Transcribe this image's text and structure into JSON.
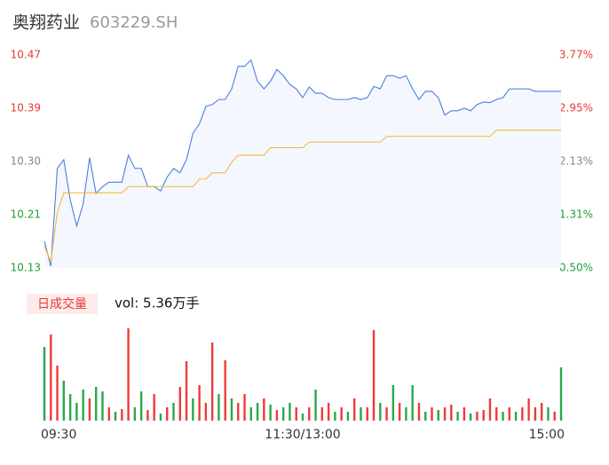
{
  "header": {
    "title": "奥翔药业",
    "code": "603229.SH"
  },
  "chart_data": [
    {
      "type": "line",
      "x": [
        0,
        3,
        6,
        9,
        12,
        15,
        18,
        21,
        24,
        27,
        30,
        33,
        36,
        39,
        42,
        45,
        48,
        51,
        54,
        57,
        60,
        63,
        66,
        69,
        72,
        75,
        78,
        81,
        84,
        87,
        90,
        93,
        96,
        99,
        102,
        105,
        108,
        111,
        114,
        117,
        120,
        123,
        126,
        129,
        132,
        135,
        138,
        141,
        144,
        147,
        150,
        153,
        156,
        159,
        162,
        165,
        168,
        171,
        174,
        177,
        180,
        183,
        186,
        189,
        192,
        195,
        198,
        201,
        204,
        207,
        210,
        213,
        216,
        219,
        222,
        225,
        228,
        231,
        234,
        237,
        240
      ],
      "series": [
        {
          "color": "#4a7fe0",
          "values": [
            10.173,
            10.133,
            10.289,
            10.303,
            10.239,
            10.197,
            10.232,
            10.306,
            10.249,
            10.26,
            10.267,
            10.267,
            10.267,
            10.31,
            10.289,
            10.289,
            10.26,
            10.26,
            10.253,
            10.275,
            10.289,
            10.282,
            10.303,
            10.345,
            10.36,
            10.388,
            10.391,
            10.399,
            10.399,
            10.416,
            10.452,
            10.452,
            10.462,
            10.428,
            10.416,
            10.428,
            10.447,
            10.437,
            10.423,
            10.416,
            10.402,
            10.419,
            10.409,
            10.409,
            10.402,
            10.399,
            10.399,
            10.399,
            10.402,
            10.399,
            10.402,
            10.42,
            10.416,
            10.437,
            10.437,
            10.433,
            10.437,
            10.416,
            10.399,
            10.412,
            10.412,
            10.402,
            10.374,
            10.381,
            10.381,
            10.385,
            10.381,
            10.391,
            10.395,
            10.394,
            10.399,
            10.402,
            10.416,
            10.416,
            10.416,
            10.416,
            10.412,
            10.412,
            10.412,
            10.412,
            10.412
          ]
        },
        {
          "color": "#f5b83d",
          "values": [
            10.165,
            10.14,
            10.218,
            10.25,
            10.25,
            10.25,
            10.25,
            10.25,
            10.25,
            10.25,
            10.25,
            10.25,
            10.25,
            10.26,
            10.26,
            10.26,
            10.26,
            10.26,
            10.26,
            10.26,
            10.26,
            10.26,
            10.26,
            10.26,
            10.272,
            10.272,
            10.282,
            10.282,
            10.282,
            10.299,
            10.31,
            10.31,
            10.31,
            10.31,
            10.31,
            10.322,
            10.322,
            10.322,
            10.322,
            10.322,
            10.322,
            10.331,
            10.331,
            10.331,
            10.331,
            10.331,
            10.331,
            10.331,
            10.331,
            10.331,
            10.331,
            10.331,
            10.331,
            10.34,
            10.34,
            10.34,
            10.34,
            10.34,
            10.34,
            10.34,
            10.34,
            10.34,
            10.34,
            10.34,
            10.34,
            10.34,
            10.34,
            10.34,
            10.34,
            10.34,
            10.35,
            10.35,
            10.35,
            10.35,
            10.35,
            10.35,
            10.35,
            10.35,
            10.35,
            10.35,
            10.35
          ]
        }
      ],
      "fill_color": "#f4f7fd",
      "xlim": [
        0,
        240
      ],
      "ylim": [
        10.13,
        10.47
      ],
      "yticks": [
        {
          "value": 10.47,
          "label": "10.47"
        },
        {
          "value": 10.385,
          "label": "10.39"
        },
        {
          "value": 10.3,
          "label": "10.30"
        },
        {
          "value": 10.215,
          "label": "10.21"
        },
        {
          "value": 10.13,
          "label": "10.13"
        }
      ],
      "ytick_colors": [
        "#e53935",
        "#e53935",
        "#888888",
        "#1f9d3a",
        "#1f9d3a"
      ],
      "y2lim": [
        0.5,
        3.77
      ],
      "y2ticks": [
        {
          "value": 3.77,
          "label": "3.77%"
        },
        {
          "value": 2.9525,
          "label": "2.95%"
        },
        {
          "value": 2.135,
          "label": "2.13%"
        },
        {
          "value": 1.3175,
          "label": "1.31%"
        },
        {
          "value": 0.5,
          "label": "0.50%"
        }
      ],
      "y2tick_colors": [
        "#e53935",
        "#e53935",
        "#888888",
        "#1f9d3a",
        "#1f9d3a"
      ]
    },
    {
      "type": "bar",
      "badge": "日成交量",
      "label": "vol: 5.36万手",
      "x": [
        0,
        3,
        6,
        9,
        12,
        15,
        18,
        21,
        24,
        27,
        30,
        33,
        36,
        39,
        42,
        45,
        48,
        51,
        54,
        57,
        60,
        63,
        66,
        69,
        72,
        75,
        78,
        81,
        84,
        87,
        90,
        93,
        96,
        99,
        102,
        105,
        108,
        111,
        114,
        117,
        120,
        123,
        126,
        129,
        132,
        135,
        138,
        141,
        144,
        147,
        150,
        153,
        156,
        159,
        162,
        165,
        168,
        171,
        174,
        177,
        180,
        183,
        186,
        189,
        192,
        195,
        198,
        201,
        204,
        207,
        210,
        213,
        216,
        219,
        222,
        225,
        228,
        231,
        234,
        237,
        240
      ],
      "values": [
        830,
        970,
        620,
        450,
        300,
        200,
        350,
        250,
        380,
        330,
        150,
        100,
        130,
        1040,
        150,
        330,
        120,
        300,
        80,
        150,
        200,
        380,
        670,
        250,
        400,
        200,
        880,
        300,
        680,
        250,
        200,
        300,
        150,
        200,
        250,
        180,
        120,
        150,
        200,
        150,
        80,
        150,
        350,
        150,
        200,
        100,
        150,
        100,
        250,
        150,
        150,
        1020,
        200,
        150,
        400,
        200,
        150,
        400,
        200,
        100,
        150,
        120,
        150,
        180,
        100,
        150,
        80,
        100,
        120,
        250,
        150,
        100,
        150,
        100,
        150,
        250,
        150,
        200,
        150,
        100,
        600
      ],
      "up": [
        false,
        true,
        true,
        false,
        false,
        false,
        false,
        true,
        false,
        false,
        true,
        false,
        true,
        true,
        false,
        false,
        true,
        true,
        false,
        true,
        false,
        true,
        true,
        false,
        true,
        true,
        true,
        false,
        true,
        false,
        true,
        true,
        false,
        false,
        true,
        false,
        true,
        false,
        false,
        true,
        false,
        true,
        false,
        true,
        true,
        false,
        true,
        false,
        true,
        false,
        true,
        true,
        false,
        true,
        false,
        true,
        false,
        false,
        true,
        false,
        true,
        false,
        true,
        true,
        false,
        true,
        false,
        true,
        true,
        true,
        true,
        false,
        true,
        false,
        true,
        true,
        true,
        true,
        false,
        true,
        false
      ],
      "up_color": "#ef3b3b",
      "down_color": "#2aa84a",
      "xlim": [
        0,
        240
      ],
      "ylim": [
        0,
        1100
      ],
      "xticks": [
        {
          "value": 0,
          "label": "09:30"
        },
        {
          "value": 120,
          "label": "11:30/13:00"
        },
        {
          "value": 240,
          "label": "15:00"
        }
      ]
    }
  ]
}
